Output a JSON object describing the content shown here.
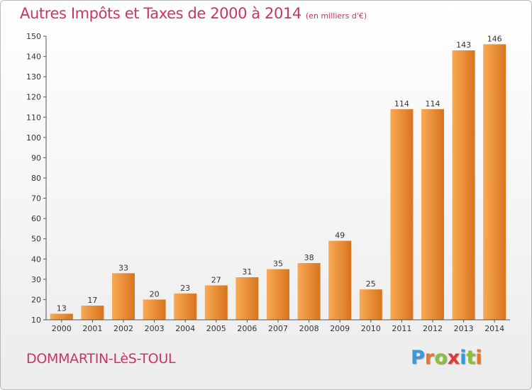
{
  "title": "Autres Impôts et Taxes de 2000 à 2014",
  "unit": "(en milliers d'€)",
  "commune": "DOMMARTIN-LèS-TOUL",
  "logo": {
    "letters": [
      "P",
      "r",
      "o",
      "x",
      "i",
      "t",
      "i"
    ],
    "colors": [
      "#3a9ad9",
      "#e8762b",
      "#8dbf3f",
      "#d93a3a",
      "#3a9ad9",
      "#8dbf3f",
      "#e8762b"
    ]
  },
  "colors": {
    "bar_light": "#f9a955",
    "bar_dark": "#d8741e",
    "text": "#cc3366"
  },
  "chart_data": {
    "type": "bar",
    "title": "Autres Impôts et Taxes de 2000 à 2014",
    "xlabel": "",
    "ylabel": "",
    "ylim": [
      10,
      150
    ],
    "yticks": [
      10,
      20,
      30,
      40,
      50,
      60,
      70,
      80,
      90,
      100,
      110,
      120,
      130,
      140,
      150
    ],
    "grid": false,
    "categories": [
      "2000",
      "2001",
      "2002",
      "2003",
      "2004",
      "2005",
      "2006",
      "2007",
      "2008",
      "2009",
      "2010",
      "2011",
      "2012",
      "2013",
      "2014"
    ],
    "values": [
      13,
      17,
      33,
      20,
      23,
      27,
      31,
      35,
      38,
      49,
      25,
      114,
      114,
      143,
      146
    ]
  }
}
